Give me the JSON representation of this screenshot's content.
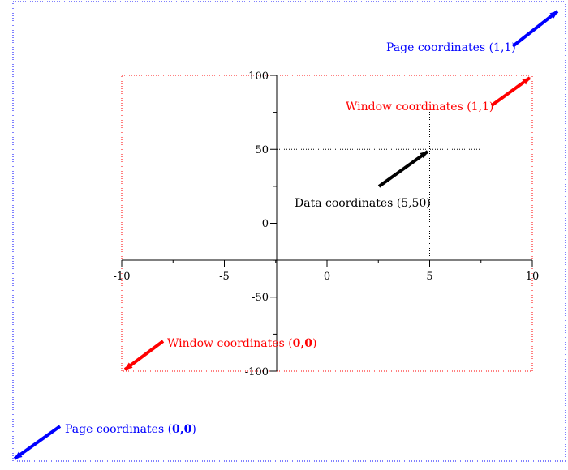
{
  "colors": {
    "page": "#0000ff",
    "window": "#ff0000",
    "data": "#000000"
  },
  "axes": {
    "x_ticks": [
      "-10",
      "-5",
      "0",
      "5",
      "10"
    ],
    "y_ticks": [
      "100",
      "50",
      "0",
      "-50",
      "-100"
    ],
    "xlim": [
      -10,
      10
    ],
    "ylim": [
      -100,
      100
    ]
  },
  "labels": {
    "page_upper": {
      "text": "Page coordinates (1,1)",
      "prefix": "",
      "bold": ""
    },
    "page_lower": {
      "prefix": "Page coordinates (",
      "bold": "0,0",
      "suffix": ")"
    },
    "window_upper": {
      "text": "Window coordinates (1,1)"
    },
    "window_lower": {
      "prefix": "Window coordinates (",
      "bold": "0,0",
      "suffix": ")"
    },
    "data_point": {
      "text": "Data coordinates (5,50)",
      "x": 5,
      "y": 50
    }
  }
}
